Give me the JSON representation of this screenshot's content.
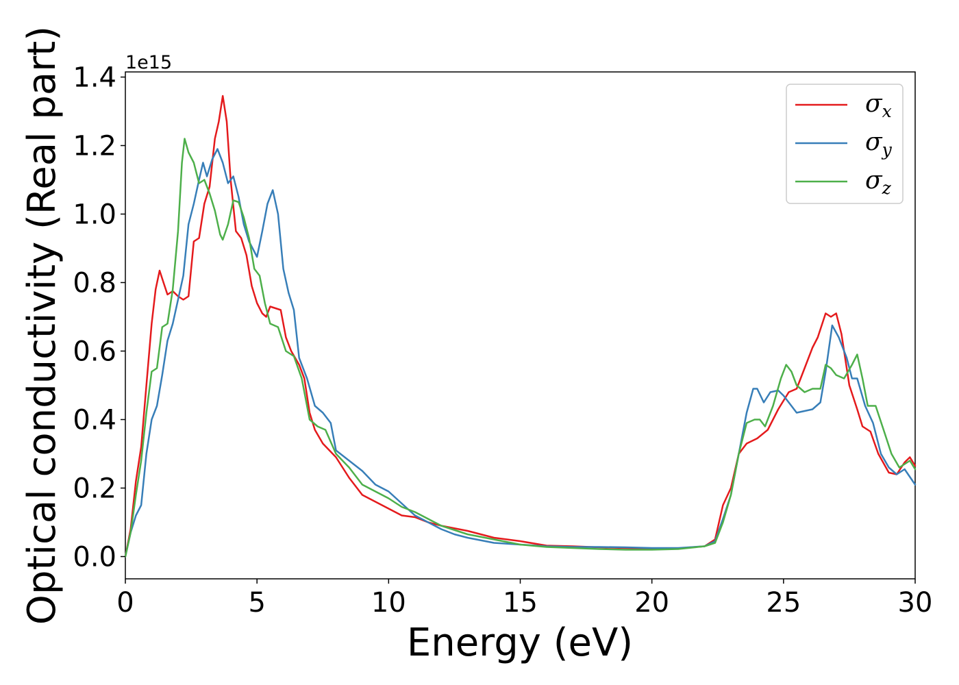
{
  "chart_data": {
    "type": "line",
    "title": "",
    "xlabel": "Energy (eV)",
    "ylabel": "Optical conductivity (Real part)",
    "y_offset_label": "1e15",
    "xlim": [
      0,
      30
    ],
    "ylim": [
      -0.065,
      1.415
    ],
    "xticks": [
      0,
      5,
      10,
      15,
      20,
      25,
      30
    ],
    "xtick_labels": [
      "0",
      "5",
      "10",
      "15",
      "20",
      "25",
      "30"
    ],
    "yticks": [
      0.0,
      0.2,
      0.4,
      0.6,
      0.8,
      1.0,
      1.2,
      1.4
    ],
    "ytick_labels": [
      "0.0",
      "0.2",
      "0.4",
      "0.6",
      "0.8",
      "1.0",
      "1.2",
      "1.4"
    ],
    "grid": false,
    "legend_position": "top-right",
    "series": [
      {
        "name": "σ",
        "subscript": "x",
        "color": "#e41a1c",
        "points": [
          [
            0,
            0
          ],
          [
            0.2,
            0.08
          ],
          [
            0.4,
            0.22
          ],
          [
            0.6,
            0.32
          ],
          [
            0.8,
            0.5
          ],
          [
            1.0,
            0.68
          ],
          [
            1.15,
            0.78
          ],
          [
            1.3,
            0.835
          ],
          [
            1.45,
            0.8
          ],
          [
            1.6,
            0.765
          ],
          [
            1.8,
            0.775
          ],
          [
            2.0,
            0.76
          ],
          [
            2.2,
            0.75
          ],
          [
            2.4,
            0.76
          ],
          [
            2.6,
            0.92
          ],
          [
            2.8,
            0.93
          ],
          [
            3.0,
            1.03
          ],
          [
            3.2,
            1.08
          ],
          [
            3.4,
            1.22
          ],
          [
            3.55,
            1.27
          ],
          [
            3.7,
            1.345
          ],
          [
            3.85,
            1.27
          ],
          [
            4.0,
            1.1
          ],
          [
            4.2,
            0.95
          ],
          [
            4.4,
            0.93
          ],
          [
            4.6,
            0.88
          ],
          [
            4.8,
            0.79
          ],
          [
            5.0,
            0.74
          ],
          [
            5.2,
            0.71
          ],
          [
            5.35,
            0.7
          ],
          [
            5.5,
            0.73
          ],
          [
            5.7,
            0.725
          ],
          [
            5.9,
            0.72
          ],
          [
            6.1,
            0.64
          ],
          [
            6.3,
            0.6
          ],
          [
            6.6,
            0.56
          ],
          [
            6.8,
            0.52
          ],
          [
            7.0,
            0.42
          ],
          [
            7.2,
            0.37
          ],
          [
            7.5,
            0.33
          ],
          [
            8.0,
            0.29
          ],
          [
            8.5,
            0.23
          ],
          [
            9.0,
            0.18
          ],
          [
            9.5,
            0.16
          ],
          [
            10.0,
            0.14
          ],
          [
            10.5,
            0.12
          ],
          [
            11.0,
            0.115
          ],
          [
            11.5,
            0.1
          ],
          [
            12.0,
            0.09
          ],
          [
            13.0,
            0.075
          ],
          [
            14.0,
            0.055
          ],
          [
            15.0,
            0.045
          ],
          [
            16.0,
            0.032
          ],
          [
            17.0,
            0.03
          ],
          [
            18.0,
            0.027
          ],
          [
            19.0,
            0.025
          ],
          [
            20.0,
            0.023
          ],
          [
            21.0,
            0.024
          ],
          [
            22.0,
            0.03
          ],
          [
            22.4,
            0.05
          ],
          [
            22.7,
            0.15
          ],
          [
            23.0,
            0.2
          ],
          [
            23.3,
            0.3
          ],
          [
            23.6,
            0.33
          ],
          [
            24.0,
            0.345
          ],
          [
            24.4,
            0.37
          ],
          [
            24.8,
            0.43
          ],
          [
            25.2,
            0.48
          ],
          [
            25.5,
            0.49
          ],
          [
            25.8,
            0.55
          ],
          [
            26.1,
            0.61
          ],
          [
            26.3,
            0.64
          ],
          [
            26.6,
            0.71
          ],
          [
            26.8,
            0.7
          ],
          [
            27.0,
            0.71
          ],
          [
            27.2,
            0.65
          ],
          [
            27.5,
            0.5
          ],
          [
            27.8,
            0.43
          ],
          [
            28.0,
            0.38
          ],
          [
            28.3,
            0.365
          ],
          [
            28.6,
            0.3
          ],
          [
            29.0,
            0.245
          ],
          [
            29.3,
            0.24
          ],
          [
            29.6,
            0.275
          ],
          [
            29.8,
            0.29
          ],
          [
            30.0,
            0.265
          ]
        ]
      },
      {
        "name": "σ",
        "subscript": "y",
        "color": "#377eb8",
        "points": [
          [
            0,
            0
          ],
          [
            0.2,
            0.07
          ],
          [
            0.4,
            0.12
          ],
          [
            0.6,
            0.15
          ],
          [
            0.8,
            0.3
          ],
          [
            1.0,
            0.4
          ],
          [
            1.2,
            0.44
          ],
          [
            1.4,
            0.53
          ],
          [
            1.6,
            0.63
          ],
          [
            1.8,
            0.68
          ],
          [
            2.0,
            0.75
          ],
          [
            2.2,
            0.82
          ],
          [
            2.4,
            0.97
          ],
          [
            2.6,
            1.03
          ],
          [
            2.8,
            1.1
          ],
          [
            2.95,
            1.15
          ],
          [
            3.1,
            1.11
          ],
          [
            3.3,
            1.16
          ],
          [
            3.5,
            1.19
          ],
          [
            3.7,
            1.15
          ],
          [
            3.9,
            1.09
          ],
          [
            4.1,
            1.11
          ],
          [
            4.3,
            1.05
          ],
          [
            4.5,
            0.97
          ],
          [
            4.7,
            0.92
          ],
          [
            5.0,
            0.875
          ],
          [
            5.2,
            0.95
          ],
          [
            5.4,
            1.03
          ],
          [
            5.6,
            1.07
          ],
          [
            5.8,
            1.0
          ],
          [
            6.0,
            0.84
          ],
          [
            6.2,
            0.77
          ],
          [
            6.4,
            0.72
          ],
          [
            6.6,
            0.58
          ],
          [
            6.9,
            0.52
          ],
          [
            7.2,
            0.44
          ],
          [
            7.5,
            0.42
          ],
          [
            7.8,
            0.39
          ],
          [
            8.0,
            0.31
          ],
          [
            8.5,
            0.28
          ],
          [
            9.0,
            0.25
          ],
          [
            9.5,
            0.21
          ],
          [
            10.0,
            0.19
          ],
          [
            10.5,
            0.155
          ],
          [
            11.0,
            0.12
          ],
          [
            11.5,
            0.1
          ],
          [
            12.0,
            0.08
          ],
          [
            12.5,
            0.065
          ],
          [
            13.0,
            0.055
          ],
          [
            14.0,
            0.04
          ],
          [
            15.0,
            0.035
          ],
          [
            16.0,
            0.03
          ],
          [
            17.0,
            0.028
          ],
          [
            18.0,
            0.028
          ],
          [
            19.0,
            0.027
          ],
          [
            20.0,
            0.025
          ],
          [
            21.0,
            0.025
          ],
          [
            22.0,
            0.03
          ],
          [
            22.4,
            0.045
          ],
          [
            22.7,
            0.11
          ],
          [
            23.0,
            0.18
          ],
          [
            23.3,
            0.3
          ],
          [
            23.6,
            0.42
          ],
          [
            23.85,
            0.49
          ],
          [
            24.0,
            0.49
          ],
          [
            24.25,
            0.45
          ],
          [
            24.5,
            0.48
          ],
          [
            24.8,
            0.485
          ],
          [
            25.0,
            0.47
          ],
          [
            25.2,
            0.45
          ],
          [
            25.5,
            0.42
          ],
          [
            25.8,
            0.425
          ],
          [
            26.1,
            0.43
          ],
          [
            26.4,
            0.45
          ],
          [
            26.6,
            0.54
          ],
          [
            26.85,
            0.675
          ],
          [
            27.1,
            0.64
          ],
          [
            27.4,
            0.58
          ],
          [
            27.6,
            0.52
          ],
          [
            27.8,
            0.52
          ],
          [
            28.1,
            0.44
          ],
          [
            28.4,
            0.39
          ],
          [
            28.7,
            0.3
          ],
          [
            29.0,
            0.26
          ],
          [
            29.3,
            0.24
          ],
          [
            29.6,
            0.255
          ],
          [
            30.0,
            0.21
          ]
        ]
      },
      {
        "name": "σ",
        "subscript": "z",
        "color": "#4daf4a",
        "points": [
          [
            0,
            0
          ],
          [
            0.2,
            0.07
          ],
          [
            0.4,
            0.18
          ],
          [
            0.6,
            0.28
          ],
          [
            0.8,
            0.42
          ],
          [
            1.0,
            0.54
          ],
          [
            1.2,
            0.55
          ],
          [
            1.4,
            0.67
          ],
          [
            1.6,
            0.68
          ],
          [
            1.8,
            0.78
          ],
          [
            2.0,
            0.95
          ],
          [
            2.15,
            1.15
          ],
          [
            2.25,
            1.22
          ],
          [
            2.4,
            1.18
          ],
          [
            2.6,
            1.15
          ],
          [
            2.8,
            1.09
          ],
          [
            3.0,
            1.1
          ],
          [
            3.2,
            1.06
          ],
          [
            3.4,
            1.01
          ],
          [
            3.6,
            0.94
          ],
          [
            3.7,
            0.925
          ],
          [
            3.9,
            0.97
          ],
          [
            4.1,
            1.04
          ],
          [
            4.3,
            1.035
          ],
          [
            4.5,
            0.99
          ],
          [
            4.7,
            0.93
          ],
          [
            4.9,
            0.84
          ],
          [
            5.1,
            0.82
          ],
          [
            5.3,
            0.74
          ],
          [
            5.5,
            0.68
          ],
          [
            5.8,
            0.67
          ],
          [
            6.1,
            0.6
          ],
          [
            6.4,
            0.585
          ],
          [
            6.7,
            0.52
          ],
          [
            7.0,
            0.4
          ],
          [
            7.3,
            0.38
          ],
          [
            7.6,
            0.37
          ],
          [
            8.0,
            0.3
          ],
          [
            8.5,
            0.26
          ],
          [
            9.0,
            0.21
          ],
          [
            9.5,
            0.19
          ],
          [
            10.0,
            0.17
          ],
          [
            10.5,
            0.145
          ],
          [
            11.0,
            0.13
          ],
          [
            11.5,
            0.11
          ],
          [
            12.0,
            0.09
          ],
          [
            13.0,
            0.065
          ],
          [
            14.0,
            0.05
          ],
          [
            15.0,
            0.035
          ],
          [
            16.0,
            0.028
          ],
          [
            17.0,
            0.025
          ],
          [
            18.0,
            0.022
          ],
          [
            19.0,
            0.02
          ],
          [
            20.0,
            0.02
          ],
          [
            21.0,
            0.022
          ],
          [
            22.0,
            0.03
          ],
          [
            22.4,
            0.04
          ],
          [
            22.7,
            0.1
          ],
          [
            23.0,
            0.18
          ],
          [
            23.3,
            0.3
          ],
          [
            23.6,
            0.39
          ],
          [
            23.9,
            0.4
          ],
          [
            24.1,
            0.4
          ],
          [
            24.3,
            0.38
          ],
          [
            24.6,
            0.44
          ],
          [
            24.9,
            0.52
          ],
          [
            25.1,
            0.56
          ],
          [
            25.3,
            0.54
          ],
          [
            25.5,
            0.5
          ],
          [
            25.8,
            0.48
          ],
          [
            26.1,
            0.49
          ],
          [
            26.4,
            0.49
          ],
          [
            26.6,
            0.56
          ],
          [
            26.8,
            0.55
          ],
          [
            27.0,
            0.53
          ],
          [
            27.3,
            0.52
          ],
          [
            27.6,
            0.56
          ],
          [
            27.8,
            0.59
          ],
          [
            28.0,
            0.52
          ],
          [
            28.2,
            0.44
          ],
          [
            28.5,
            0.44
          ],
          [
            28.8,
            0.37
          ],
          [
            29.1,
            0.3
          ],
          [
            29.4,
            0.26
          ],
          [
            29.8,
            0.28
          ],
          [
            30.0,
            0.255
          ]
        ]
      }
    ]
  }
}
